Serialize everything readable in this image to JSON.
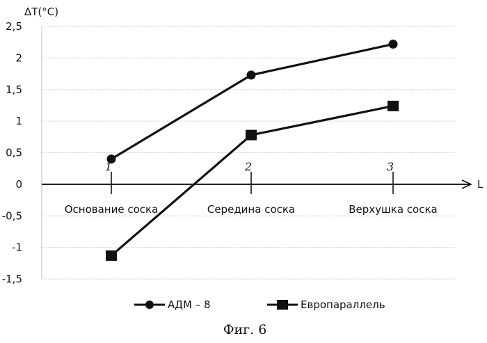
{
  "chart_data": {
    "type": "line",
    "ylabel": "ΔT(°C)",
    "xlabel": "L",
    "ylim": [
      -1.5,
      2.5
    ],
    "y_ticks": [
      "2,5",
      "2",
      "1,5",
      "1",
      "0,5",
      "0",
      "-0,5",
      "-1",
      "-1,5"
    ],
    "y_tick_values": [
      2.5,
      2,
      1.5,
      1,
      0.5,
      0,
      -0.5,
      -1,
      -1.5
    ],
    "point_numbers": [
      "1",
      "2",
      "3"
    ],
    "categories": [
      "Основание соска",
      "Середина соска",
      "Верхушка соска"
    ],
    "series": [
      {
        "name": "АДМ – 8",
        "marker": "circle",
        "color": "#111111",
        "values": [
          0.4,
          1.73,
          2.22
        ]
      },
      {
        "name": "Европараллель",
        "marker": "square",
        "color": "#111111",
        "values": [
          -1.13,
          0.78,
          1.24
        ]
      }
    ],
    "grid": true,
    "legend_position": "bottom"
  },
  "caption": "Фиг. 6"
}
